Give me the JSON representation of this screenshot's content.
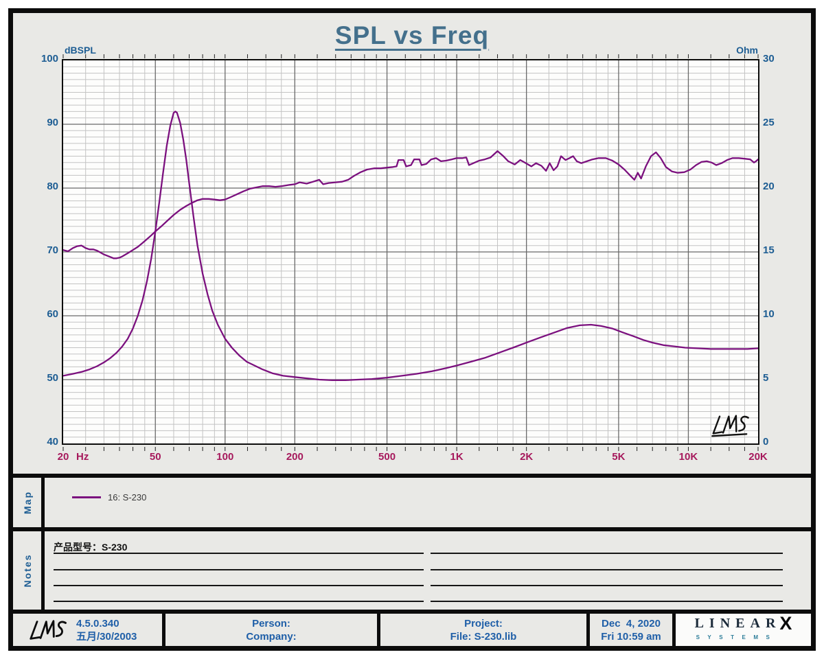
{
  "title": "SPL vs Freq",
  "watermark": "LMS",
  "axes": {
    "left_label": "dBSPL",
    "right_label": "Ohm",
    "x_unit": "Hz",
    "left_ticks": [
      "100",
      "90",
      "80",
      "70",
      "60",
      "50",
      "40"
    ],
    "right_ticks": [
      "30",
      "25",
      "20",
      "15",
      "10",
      "5",
      "0"
    ],
    "x_ticks": [
      {
        "f": 20,
        "label": "20"
      },
      {
        "f": 50,
        "label": "50"
      },
      {
        "f": 100,
        "label": "100"
      },
      {
        "f": 200,
        "label": "200"
      },
      {
        "f": 500,
        "label": "500"
      },
      {
        "f": 1000,
        "label": "1K"
      },
      {
        "f": 2000,
        "label": "2K"
      },
      {
        "f": 5000,
        "label": "5K"
      },
      {
        "f": 10000,
        "label": "10K"
      },
      {
        "f": 20000,
        "label": "20K"
      }
    ]
  },
  "map": {
    "label": "Map",
    "legend": "16: S-230"
  },
  "notes": {
    "label": "Notes",
    "line1": "产品型号：S-230"
  },
  "footer": {
    "version": "4.5.0.340",
    "version_date": "五月/30/2003",
    "person": "Person:",
    "company": "Company:",
    "project": "Project:",
    "file": "File: S-230.lib",
    "date": "Dec  4, 2020",
    "time": "Fri 10:59 am",
    "brand_linear": "LINEAR",
    "brand_x": "X",
    "brand_systems": "SYSTEMS"
  },
  "colors": {
    "curve": "#7b107e",
    "title": "#44708c",
    "axis_label_blue": "#1d5d93",
    "x_tick_maroon": "#a6195c",
    "footer_blue": "#1f5fa8",
    "grid_major": "#6a6a6a",
    "grid_minor": "#c3c3c3",
    "background": "#e9e9e6"
  },
  "chart_data": {
    "type": "line",
    "title": "SPL vs Freq",
    "legend": "16: S-230",
    "x_axis": {
      "label": "Hz",
      "scale": "log",
      "min": 20,
      "max": 20000
    },
    "y_axis_left": {
      "label": "dBSPL",
      "min": 40,
      "max": 100,
      "major_step": 10,
      "minor_step": 1
    },
    "y_axis_right": {
      "label": "Ohm",
      "min": 0,
      "max": 30,
      "major_step": 5
    },
    "grid": true,
    "series": [
      {
        "name": "16: S-230 SPL",
        "axis": "left",
        "color": "#7b107e",
        "points": [
          [
            20,
            70.3
          ],
          [
            21,
            70.1
          ],
          [
            22,
            70.6
          ],
          [
            23,
            70.9
          ],
          [
            24,
            71.0
          ],
          [
            25,
            70.6
          ],
          [
            26,
            70.4
          ],
          [
            27,
            70.4
          ],
          [
            28,
            70.2
          ],
          [
            29,
            69.9
          ],
          [
            30,
            69.6
          ],
          [
            31,
            69.4
          ],
          [
            32,
            69.2
          ],
          [
            33,
            69.0
          ],
          [
            34,
            69.0
          ],
          [
            35,
            69.1
          ],
          [
            36,
            69.3
          ],
          [
            38,
            69.8
          ],
          [
            40,
            70.3
          ],
          [
            42,
            70.8
          ],
          [
            44,
            71.4
          ],
          [
            46,
            72.0
          ],
          [
            48,
            72.6
          ],
          [
            50,
            73.2
          ],
          [
            53,
            74.0
          ],
          [
            56,
            74.8
          ],
          [
            60,
            75.8
          ],
          [
            64,
            76.6
          ],
          [
            68,
            77.2
          ],
          [
            72,
            77.7
          ],
          [
            76,
            78.1
          ],
          [
            80,
            78.3
          ],
          [
            85,
            78.3
          ],
          [
            90,
            78.2
          ],
          [
            95,
            78.1
          ],
          [
            100,
            78.2
          ],
          [
            106,
            78.6
          ],
          [
            112,
            79.0
          ],
          [
            120,
            79.5
          ],
          [
            128,
            79.9
          ],
          [
            136,
            80.1
          ],
          [
            145,
            80.3
          ],
          [
            155,
            80.3
          ],
          [
            165,
            80.2
          ],
          [
            175,
            80.3
          ],
          [
            190,
            80.5
          ],
          [
            200,
            80.6
          ],
          [
            210,
            80.9
          ],
          [
            225,
            80.7
          ],
          [
            240,
            81.0
          ],
          [
            255,
            81.3
          ],
          [
            265,
            80.6
          ],
          [
            280,
            80.8
          ],
          [
            300,
            80.9
          ],
          [
            320,
            81.0
          ],
          [
            340,
            81.3
          ],
          [
            360,
            81.9
          ],
          [
            385,
            82.5
          ],
          [
            410,
            82.9
          ],
          [
            440,
            83.1
          ],
          [
            470,
            83.1
          ],
          [
            500,
            83.2
          ],
          [
            530,
            83.3
          ],
          [
            550,
            83.4
          ],
          [
            560,
            84.4
          ],
          [
            590,
            84.4
          ],
          [
            605,
            83.4
          ],
          [
            635,
            83.6
          ],
          [
            655,
            84.5
          ],
          [
            690,
            84.5
          ],
          [
            705,
            83.6
          ],
          [
            740,
            83.8
          ],
          [
            775,
            84.5
          ],
          [
            815,
            84.7
          ],
          [
            855,
            84.2
          ],
          [
            900,
            84.3
          ],
          [
            950,
            84.5
          ],
          [
            1000,
            84.7
          ],
          [
            1060,
            84.7
          ],
          [
            1100,
            84.8
          ],
          [
            1130,
            83.6
          ],
          [
            1180,
            83.9
          ],
          [
            1250,
            84.3
          ],
          [
            1320,
            84.5
          ],
          [
            1400,
            84.8
          ],
          [
            1500,
            85.8
          ],
          [
            1580,
            85.1
          ],
          [
            1670,
            84.2
          ],
          [
            1780,
            83.7
          ],
          [
            1880,
            84.4
          ],
          [
            1990,
            83.9
          ],
          [
            2100,
            83.4
          ],
          [
            2200,
            83.9
          ],
          [
            2320,
            83.5
          ],
          [
            2430,
            82.7
          ],
          [
            2520,
            83.9
          ],
          [
            2620,
            82.8
          ],
          [
            2720,
            83.4
          ],
          [
            2820,
            85.0
          ],
          [
            2950,
            84.4
          ],
          [
            3070,
            84.7
          ],
          [
            3180,
            85.0
          ],
          [
            3300,
            84.2
          ],
          [
            3450,
            83.9
          ],
          [
            3650,
            84.2
          ],
          [
            3850,
            84.5
          ],
          [
            4100,
            84.7
          ],
          [
            4400,
            84.7
          ],
          [
            4700,
            84.3
          ],
          [
            5000,
            83.7
          ],
          [
            5300,
            82.9
          ],
          [
            5600,
            82.0
          ],
          [
            5850,
            81.3
          ],
          [
            6050,
            82.4
          ],
          [
            6250,
            81.5
          ],
          [
            6550,
            83.4
          ],
          [
            6900,
            85.0
          ],
          [
            7250,
            85.6
          ],
          [
            7600,
            84.7
          ],
          [
            8000,
            83.3
          ],
          [
            8500,
            82.6
          ],
          [
            9000,
            82.4
          ],
          [
            9600,
            82.5
          ],
          [
            10200,
            82.9
          ],
          [
            10800,
            83.6
          ],
          [
            11400,
            84.1
          ],
          [
            12000,
            84.2
          ],
          [
            12600,
            84.0
          ],
          [
            13200,
            83.6
          ],
          [
            13900,
            83.9
          ],
          [
            14700,
            84.4
          ],
          [
            15500,
            84.7
          ],
          [
            16500,
            84.7
          ],
          [
            17500,
            84.6
          ],
          [
            18500,
            84.5
          ],
          [
            19200,
            84.0
          ],
          [
            19600,
            84.2
          ],
          [
            20000,
            84.5
          ]
        ]
      },
      {
        "name": "16: S-230 Impedance",
        "axis": "right",
        "color": "#7b107e",
        "points": [
          [
            20,
            5.3
          ],
          [
            22,
            5.45
          ],
          [
            24,
            5.6
          ],
          [
            26,
            5.8
          ],
          [
            28,
            6.05
          ],
          [
            30,
            6.35
          ],
          [
            32,
            6.7
          ],
          [
            34,
            7.1
          ],
          [
            36,
            7.6
          ],
          [
            38,
            8.2
          ],
          [
            40,
            9.0
          ],
          [
            42,
            10.0
          ],
          [
            44,
            11.2
          ],
          [
            46,
            12.7
          ],
          [
            48,
            14.5
          ],
          [
            50,
            16.6
          ],
          [
            52,
            18.9
          ],
          [
            54,
            21.2
          ],
          [
            56,
            23.3
          ],
          [
            58,
            24.9
          ],
          [
            60,
            25.9
          ],
          [
            61,
            26.0
          ],
          [
            62,
            25.9
          ],
          [
            64,
            25.1
          ],
          [
            66,
            23.8
          ],
          [
            68,
            22.2
          ],
          [
            70,
            20.4
          ],
          [
            73,
            17.8
          ],
          [
            76,
            15.5
          ],
          [
            80,
            13.3
          ],
          [
            84,
            11.7
          ],
          [
            88,
            10.4
          ],
          [
            93,
            9.3
          ],
          [
            100,
            8.2
          ],
          [
            107,
            7.5
          ],
          [
            115,
            6.9
          ],
          [
            124,
            6.4
          ],
          [
            134,
            6.1
          ],
          [
            145,
            5.8
          ],
          [
            160,
            5.5
          ],
          [
            178,
            5.3
          ],
          [
            200,
            5.2
          ],
          [
            225,
            5.1
          ],
          [
            255,
            5.0
          ],
          [
            290,
            4.95
          ],
          [
            330,
            4.95
          ],
          [
            375,
            5.0
          ],
          [
            430,
            5.05
          ],
          [
            500,
            5.15
          ],
          [
            580,
            5.3
          ],
          [
            670,
            5.45
          ],
          [
            780,
            5.65
          ],
          [
            900,
            5.9
          ],
          [
            1000,
            6.1
          ],
          [
            1150,
            6.4
          ],
          [
            1320,
            6.7
          ],
          [
            1520,
            7.1
          ],
          [
            1750,
            7.5
          ],
          [
            2000,
            7.9
          ],
          [
            2300,
            8.3
          ],
          [
            2650,
            8.7
          ],
          [
            3000,
            9.05
          ],
          [
            3400,
            9.25
          ],
          [
            3800,
            9.3
          ],
          [
            4200,
            9.2
          ],
          [
            4700,
            9.0
          ],
          [
            5200,
            8.7
          ],
          [
            5800,
            8.4
          ],
          [
            6400,
            8.1
          ],
          [
            7000,
            7.9
          ],
          [
            7800,
            7.7
          ],
          [
            8700,
            7.6
          ],
          [
            9700,
            7.5
          ],
          [
            11000,
            7.45
          ],
          [
            12500,
            7.4
          ],
          [
            14000,
            7.4
          ],
          [
            16000,
            7.4
          ],
          [
            18000,
            7.4
          ],
          [
            20000,
            7.45
          ]
        ]
      }
    ]
  }
}
